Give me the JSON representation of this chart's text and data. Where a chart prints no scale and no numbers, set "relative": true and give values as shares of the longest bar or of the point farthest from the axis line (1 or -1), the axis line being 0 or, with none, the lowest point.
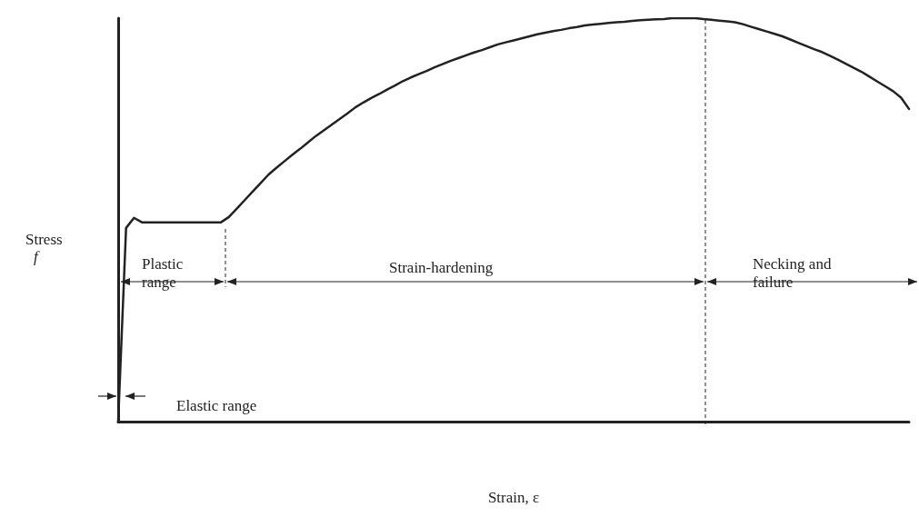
{
  "chart_data": {
    "type": "line",
    "relative": true,
    "xlabel": "Strain, ε",
    "ylabel": "Stress\nf",
    "categories": [
      null,
      null,
      null,
      null,
      null,
      null,
      null,
      null,
      null,
      null,
      null,
      null,
      null,
      null,
      null,
      null,
      null,
      null,
      null,
      null,
      null,
      null,
      null,
      null,
      null,
      null,
      null,
      null,
      null,
      null,
      null,
      null,
      null,
      null,
      null,
      null,
      null,
      null,
      null,
      null,
      null,
      null,
      null,
      null,
      null,
      null,
      null,
      null,
      null,
      null,
      null,
      null,
      null,
      null,
      null,
      null,
      null,
      null,
      null,
      null,
      null,
      null,
      null,
      null,
      null,
      null,
      null,
      null,
      null,
      null,
      null,
      null,
      null,
      null,
      null,
      null,
      null,
      null,
      null,
      null,
      null,
      null,
      null,
      null,
      null,
      null,
      null,
      null,
      null,
      null,
      null,
      null,
      null,
      null,
      null,
      null,
      null,
      null,
      null,
      null,
      null
    ],
    "series": [
      {
        "color": "#222222",
        "values": [
          0,
          0.48,
          0.505,
          0.494,
          0.494,
          0.494,
          0.494,
          0.494,
          0.494,
          0.494,
          0.494,
          0.494,
          0.494,
          0.494,
          0.507,
          0.528,
          0.549,
          0.57,
          0.591,
          0.612,
          0.629,
          0.645,
          0.661,
          0.676,
          0.692,
          0.708,
          0.722,
          0.736,
          0.75,
          0.764,
          0.779,
          0.791,
          0.802,
          0.812,
          0.823,
          0.833,
          0.844,
          0.853,
          0.861,
          0.869,
          0.878,
          0.886,
          0.894,
          0.901,
          0.908,
          0.915,
          0.921,
          0.928,
          0.935,
          0.94,
          0.945,
          0.95,
          0.955,
          0.96,
          0.964,
          0.968,
          0.971,
          0.975,
          0.978,
          0.982,
          0.984,
          0.986,
          0.988,
          0.99,
          0.991,
          0.993,
          0.995,
          0.996,
          0.997,
          0.998,
          1,
          1,
          1,
          1,
          0.998,
          0.996,
          0.994,
          0.992,
          0.99,
          0.985,
          0.979,
          0.973,
          0.967,
          0.961,
          0.955,
          0.947,
          0.939,
          0.931,
          0.923,
          0.916,
          0.907,
          0.897,
          0.887,
          0.877,
          0.867,
          0.855,
          0.843,
          0.831,
          0.819,
          0.803,
          0.775
        ]
      }
    ],
    "annotations": [
      "Plastic\nrange",
      "Strain-hardening",
      "Necking and\nfailure",
      "Elastic range"
    ],
    "marker": "none",
    "line_style": "solid",
    "grid": false
  }
}
